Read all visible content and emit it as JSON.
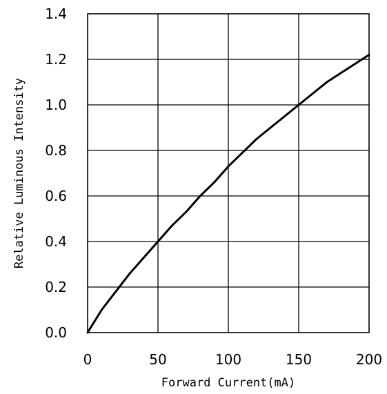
{
  "chart_data": {
    "type": "line",
    "title": "",
    "xlabel": "Forward Current(mA)",
    "ylabel": "Relative Luminous Intensity",
    "xlim": [
      0,
      200
    ],
    "ylim": [
      0.0,
      1.4
    ],
    "grid": true,
    "x_ticks": [
      "0",
      "50",
      "100",
      "150",
      "200"
    ],
    "y_ticks": [
      "0.0",
      "0.2",
      "0.4",
      "0.6",
      "0.8",
      "1.0",
      "1.2",
      "1.4"
    ],
    "series": [
      {
        "color": "#000000",
        "x": [
          0,
          10,
          20,
          30,
          40,
          50,
          60,
          70,
          80,
          90,
          100,
          110,
          120,
          130,
          140,
          150,
          160,
          170,
          180,
          190,
          200
        ],
        "y": [
          0.0,
          0.1,
          0.18,
          0.26,
          0.33,
          0.4,
          0.47,
          0.53,
          0.6,
          0.66,
          0.73,
          0.79,
          0.85,
          0.9,
          0.95,
          1.0,
          1.05,
          1.1,
          1.14,
          1.18,
          1.22
        ]
      }
    ]
  }
}
